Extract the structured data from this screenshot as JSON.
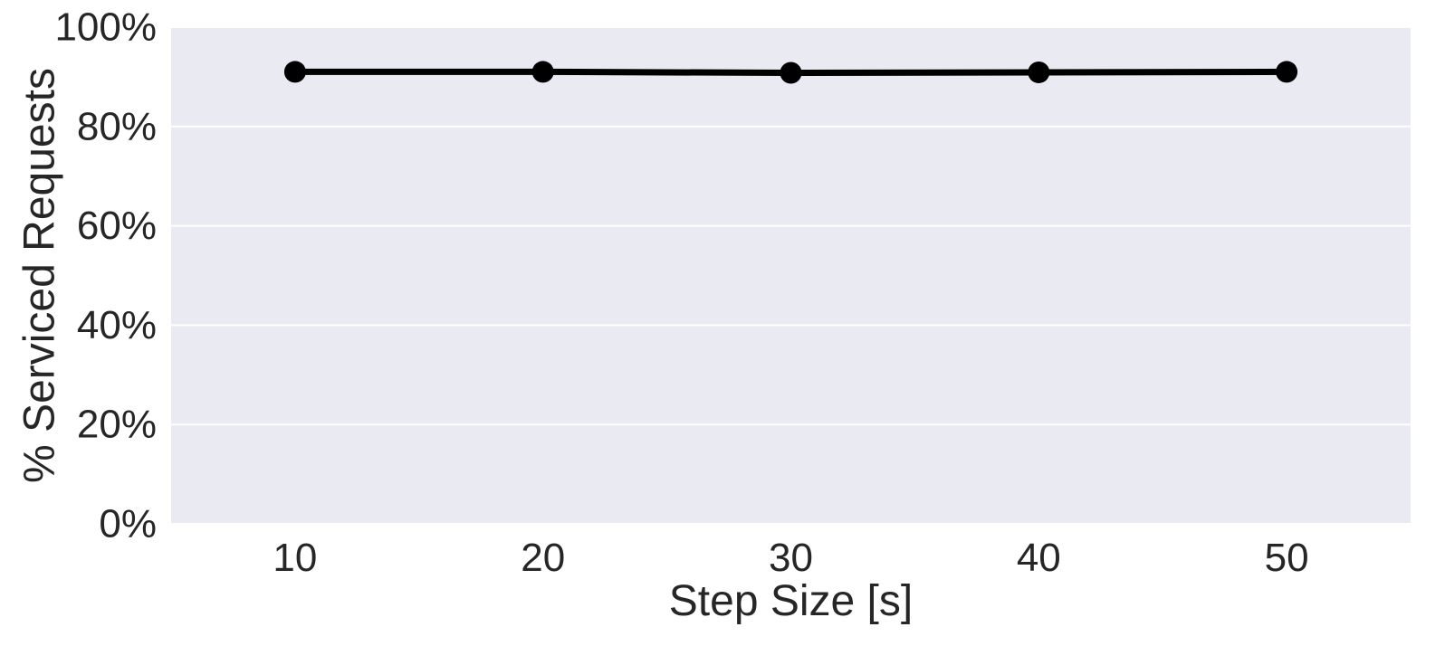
{
  "chart_data": {
    "type": "line",
    "title": "",
    "xlabel": "Step Size [s]",
    "ylabel": "% Serviced Requests",
    "x": [
      10,
      20,
      30,
      40,
      50
    ],
    "series": [
      {
        "values": [
          91.0,
          91.0,
          90.8,
          90.9,
          91.0
        ]
      }
    ],
    "xlim": [
      5,
      55
    ],
    "ylim": [
      0,
      100
    ],
    "xticks": [
      10,
      20,
      30,
      40,
      50
    ],
    "xtick_labels": [
      "10",
      "20",
      "30",
      "40",
      "50"
    ],
    "yticks": [
      0,
      20,
      40,
      60,
      80,
      100
    ],
    "ytick_labels": [
      "0%",
      "20%",
      "40%",
      "60%",
      "80%",
      "100%"
    ],
    "grid": true,
    "legend": "none",
    "colors": {
      "plot_background": "#eaeaf2",
      "grid": "#ffffff",
      "series_line": "#000000",
      "text": "#262626"
    }
  }
}
